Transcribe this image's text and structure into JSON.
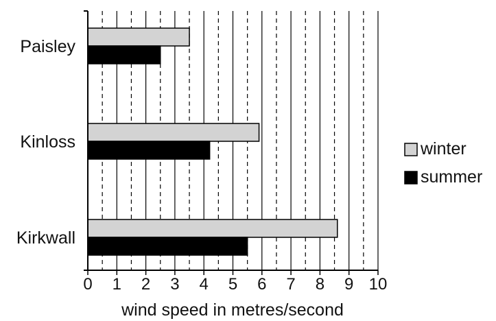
{
  "chart_data": {
    "type": "bar",
    "orientation": "horizontal",
    "categories": [
      "Paisley",
      "Kinloss",
      "Kirkwall"
    ],
    "series": [
      {
        "name": "winter",
        "values": [
          3.5,
          5.9,
          8.6
        ],
        "color": "#d3d3d3"
      },
      {
        "name": "summer",
        "values": [
          2.5,
          4.2,
          5.5
        ],
        "color": "#000000"
      }
    ],
    "xlabel": "wind speed in metres/second",
    "xlim": [
      0,
      10
    ],
    "xticks": [
      "0",
      "1",
      "2",
      "3",
      "4",
      "5",
      "6",
      "7",
      "8",
      "9",
      "10"
    ],
    "grid": "solid at integers, dashed at half values",
    "legend": "right"
  }
}
